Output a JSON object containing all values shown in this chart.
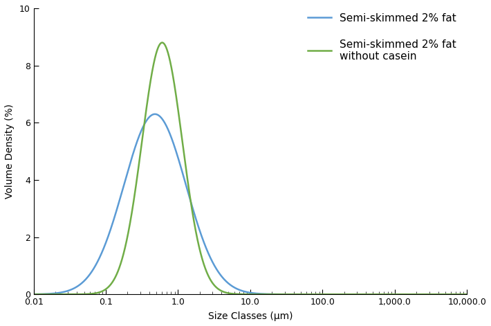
{
  "xlabel": "Size Classes (μm)",
  "ylabel": "Volume Density (%)",
  "ylim": [
    0,
    10
  ],
  "yticks": [
    0,
    2,
    4,
    6,
    8,
    10
  ],
  "xtick_major": [
    0.01,
    0.1,
    1.0,
    10.0,
    100.0,
    1000.0,
    10000.0
  ],
  "xtick_labels": [
    "0.01",
    "0.1",
    "1.0",
    "10.0",
    "100.0",
    "1,000.0",
    "10,000.0"
  ],
  "blue_color": "#5b9bd5",
  "green_color": "#70ad47",
  "blue_label": "Semi-skimmed 2% fat",
  "green_label": "Semi-skimmed 2% fat\nwithout casein",
  "blue_log_peak": -0.32,
  "blue_peak_val": 6.3,
  "blue_sigma": 0.43,
  "green_log_peak": -0.22,
  "green_peak_val": 8.8,
  "green_sigma": 0.28,
  "background_color": "#ffffff",
  "linewidth": 1.8,
  "tick_fontsize": 9,
  "label_fontsize": 10,
  "legend_fontsize": 11
}
